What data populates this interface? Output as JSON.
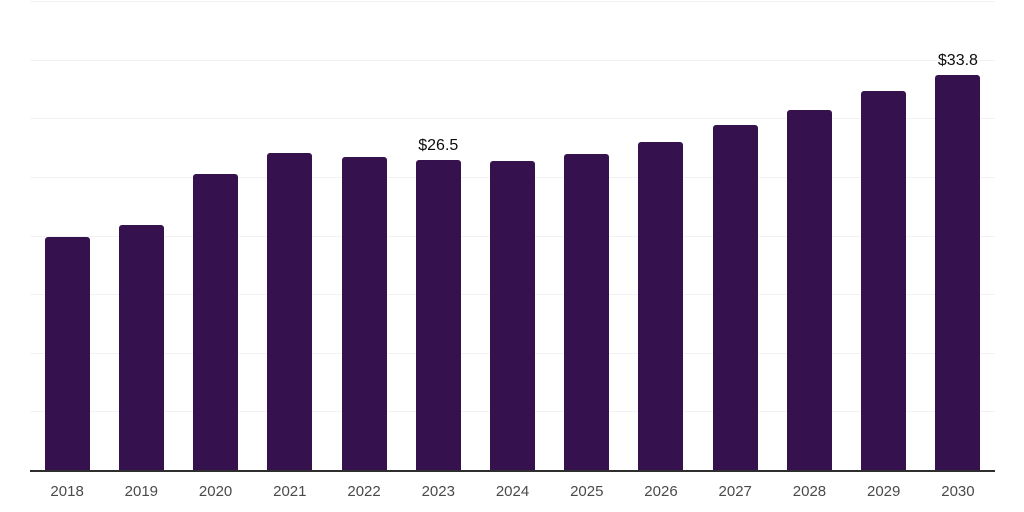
{
  "chart_data": {
    "type": "bar",
    "title": "",
    "categories": [
      "2018",
      "2019",
      "2020",
      "2021",
      "2022",
      "2023",
      "2024",
      "2025",
      "2026",
      "2027",
      "2028",
      "2029",
      "2030"
    ],
    "values": [
      20.0,
      21.0,
      25.3,
      27.1,
      26.8,
      26.5,
      26.4,
      27.0,
      28.1,
      29.5,
      30.8,
      32.4,
      33.8
    ],
    "data_labels": {
      "2023": "$26.5",
      "2030": "$33.8"
    },
    "xlabel": "",
    "ylabel": "",
    "ylim": [
      0,
      40
    ],
    "gridline_step": 5,
    "grid": true,
    "legend": "none",
    "bar_color": "#35124D",
    "axis_color": "#2E2E2E",
    "gridline_color": "#F2F2F4",
    "tick_label_color": "#4A4A4A",
    "data_label_color": "#0D0D0D",
    "background_color": "#FFFFFF"
  }
}
